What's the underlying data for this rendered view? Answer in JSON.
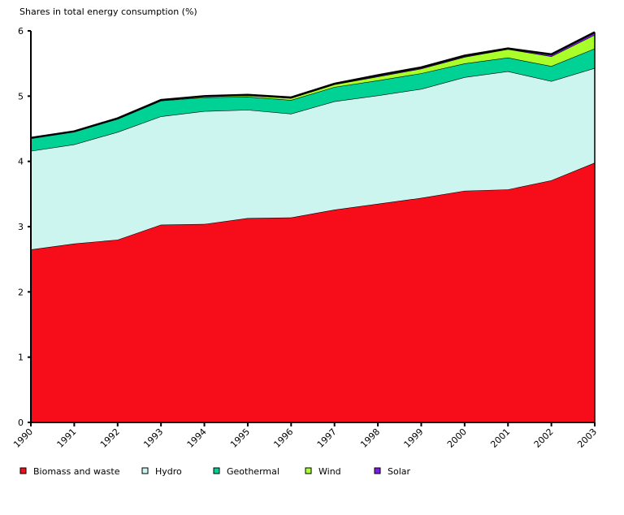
{
  "chart_data": {
    "type": "area",
    "stacked": true,
    "title": "",
    "ylabel": "Shares in total energy consumption (%)",
    "xlabel": "",
    "ylim": [
      0,
      6
    ],
    "yticks": [
      "0",
      "1",
      "2",
      "3",
      "4",
      "5",
      "6"
    ],
    "categories": [
      "1990",
      "1991",
      "1992",
      "1993",
      "1994",
      "1995",
      "1996",
      "1997",
      "1998",
      "1999",
      "2000",
      "2001",
      "2002",
      "2003"
    ],
    "series": [
      {
        "name": "Biomass and waste",
        "color": "#f70d1a",
        "values": [
          2.65,
          2.74,
          2.8,
          3.03,
          3.04,
          3.13,
          3.14,
          3.26,
          3.35,
          3.44,
          3.55,
          3.57,
          3.71,
          3.98
        ]
      },
      {
        "name": "Hydro",
        "color": "#cdf5f0",
        "values": [
          1.51,
          1.52,
          1.65,
          1.66,
          1.73,
          1.66,
          1.59,
          1.66,
          1.66,
          1.67,
          1.74,
          1.81,
          1.52,
          1.45
        ]
      },
      {
        "name": "Geothermal",
        "color": "#00d296",
        "values": [
          0.2,
          0.2,
          0.2,
          0.24,
          0.21,
          0.2,
          0.21,
          0.22,
          0.23,
          0.24,
          0.21,
          0.21,
          0.23,
          0.3
        ]
      },
      {
        "name": "Wind",
        "color": "#aaff2a",
        "values": [
          0,
          0,
          0.01,
          0.01,
          0.02,
          0.02,
          0.03,
          0.04,
          0.06,
          0.07,
          0.1,
          0.13,
          0.15,
          0.21
        ]
      },
      {
        "name": "Solar",
        "color": "#7a1ee6",
        "values": [
          0,
          0,
          0,
          0,
          0,
          0.01,
          0.01,
          0.01,
          0.02,
          0.02,
          0.02,
          0.01,
          0.03,
          0.04
        ]
      }
    ],
    "legend_position": "bottom",
    "grid": false
  }
}
